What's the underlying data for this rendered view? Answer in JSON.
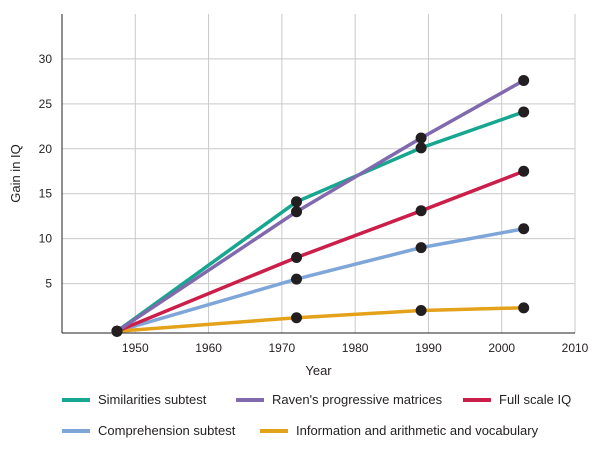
{
  "chart_data": {
    "type": "line",
    "title": "",
    "xlabel": "Year",
    "ylabel": "Gain in IQ",
    "xlim": [
      1940,
      2010
    ],
    "ylim": [
      -0.5,
      35
    ],
    "xticks": [
      1950,
      1960,
      1970,
      1980,
      1990,
      2000,
      2010
    ],
    "yticks": [
      5,
      10,
      15,
      20,
      25,
      30
    ],
    "grid": "vertical and horizontal",
    "legend_position": "bottom",
    "series": [
      {
        "name": "Similarities subtest",
        "color": "#17a68f",
        "x": [
          1947.5,
          1972,
          1989,
          2003
        ],
        "y": [
          -0.3,
          14.1,
          20.1,
          24.1
        ]
      },
      {
        "name": "Raven's progressive matrices",
        "color": "#8069ad",
        "x": [
          1947.5,
          1972,
          1989,
          2003
        ],
        "y": [
          -0.3,
          13.0,
          21.2,
          27.6
        ]
      },
      {
        "name": "Full scale IQ",
        "color": "#cc1e4a",
        "x": [
          1947.5,
          1972,
          1989,
          2003
        ],
        "y": [
          -0.3,
          7.9,
          13.1,
          17.5
        ]
      },
      {
        "name": "Comprehension subtest",
        "color": "#7fa6d8",
        "x": [
          1947.5,
          1972,
          1989,
          2003
        ],
        "y": [
          -0.3,
          5.5,
          9.0,
          11.1
        ]
      },
      {
        "name": "Information and arithmetic and vocabulary",
        "color": "#e3a21a",
        "x": [
          1947.5,
          1972,
          1989,
          2003
        ],
        "y": [
          -0.3,
          1.2,
          2.0,
          2.3
        ]
      }
    ]
  }
}
